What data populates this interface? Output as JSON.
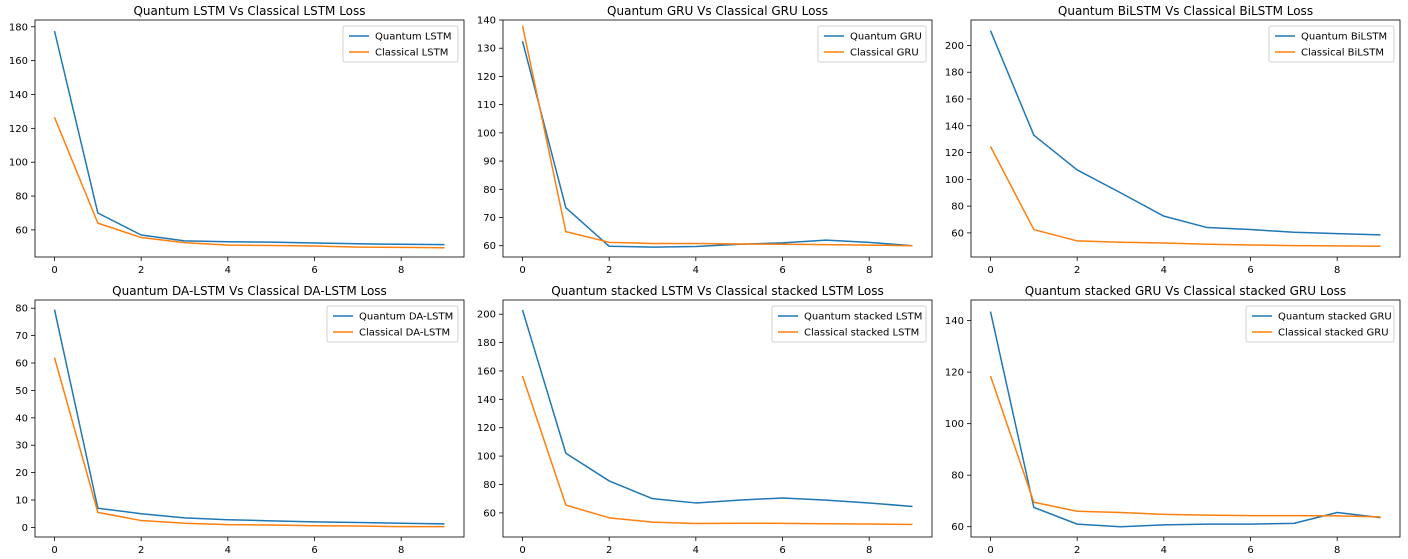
{
  "colors": {
    "series1": "#1f77b4",
    "series2": "#ff7f0e"
  },
  "chart_data": [
    {
      "type": "line",
      "title": "Quantum LSTM Vs Classical LSTM Loss",
      "x": [
        0,
        1,
        2,
        3,
        4,
        5,
        6,
        7,
        8,
        9
      ],
      "xlim": [
        -0.45,
        9.45
      ],
      "xticks": [
        0,
        2,
        4,
        6,
        8
      ],
      "ylim": [
        44,
        184
      ],
      "yticks": [
        60,
        80,
        100,
        120,
        140,
        160,
        180
      ],
      "legend": "top-right",
      "series": [
        {
          "name": "Quantum LSTM",
          "values": [
            177.5,
            70.0,
            57.0,
            53.5,
            53.0,
            52.8,
            52.3,
            51.8,
            51.5,
            51.3
          ]
        },
        {
          "name": "Classical LSTM",
          "values": [
            126.5,
            64.0,
            55.5,
            52.5,
            51.0,
            50.8,
            50.5,
            49.8,
            49.7,
            49.5
          ]
        }
      ]
    },
    {
      "type": "line",
      "title": "Quantum GRU Vs Classical GRU Loss",
      "x": [
        0,
        1,
        2,
        3,
        4,
        5,
        6,
        7,
        8,
        9
      ],
      "xlim": [
        -0.45,
        9.45
      ],
      "xticks": [
        0,
        2,
        4,
        6,
        8
      ],
      "ylim": [
        56,
        140
      ],
      "yticks": [
        60,
        70,
        80,
        90,
        100,
        110,
        120,
        130,
        140
      ],
      "legend": "top-right",
      "series": [
        {
          "name": "Quantum GRU",
          "values": [
            132.5,
            73.5,
            59.8,
            59.5,
            59.7,
            60.5,
            61.0,
            62.0,
            61.2,
            60.0
          ]
        },
        {
          "name": "Classical GRU",
          "values": [
            138.0,
            65.0,
            61.2,
            60.8,
            60.8,
            60.6,
            60.5,
            60.4,
            60.2,
            60.0
          ]
        }
      ]
    },
    {
      "type": "line",
      "title": "Quantum BiLSTM Vs Classical BiLSTM Loss",
      "x": [
        0,
        1,
        2,
        3,
        4,
        5,
        6,
        7,
        8,
        9
      ],
      "xlim": [
        -0.45,
        9.45
      ],
      "xticks": [
        0,
        2,
        4,
        6,
        8
      ],
      "ylim": [
        42,
        219
      ],
      "yticks": [
        60,
        80,
        100,
        120,
        140,
        160,
        180,
        200
      ],
      "legend": "top-right",
      "series": [
        {
          "name": "Quantum BiLSTM",
          "values": [
            211.0,
            133.0,
            107.0,
            90.0,
            72.5,
            64.0,
            62.5,
            60.5,
            59.5,
            58.5
          ]
        },
        {
          "name": "Classical BiLSTM",
          "values": [
            124.5,
            62.5,
            54.0,
            53.0,
            52.5,
            51.5,
            51.0,
            50.5,
            50.3,
            50.0
          ]
        }
      ]
    },
    {
      "type": "line",
      "title": "Quantum DA-LSTM Vs Classical DA-LSTM Loss",
      "x": [
        0,
        1,
        2,
        3,
        4,
        5,
        6,
        7,
        8,
        9
      ],
      "xlim": [
        -0.45,
        9.45
      ],
      "xticks": [
        0,
        2,
        4,
        6,
        8
      ],
      "ylim": [
        -3.5,
        83
      ],
      "yticks": [
        0,
        10,
        20,
        30,
        40,
        50,
        60,
        70,
        80
      ],
      "legend": "top-right",
      "series": [
        {
          "name": "Quantum DA-LSTM",
          "values": [
            79.5,
            7.0,
            5.0,
            3.5,
            2.8,
            2.4,
            2.0,
            1.8,
            1.5,
            1.3
          ]
        },
        {
          "name": "Classical DA-LSTM",
          "values": [
            62.0,
            5.5,
            2.5,
            1.5,
            1.0,
            0.9,
            0.6,
            0.5,
            0.3,
            0.3
          ]
        }
      ]
    },
    {
      "type": "line",
      "title": "Quantum stacked LSTM Vs Classical stacked LSTM Loss",
      "x": [
        0,
        1,
        2,
        3,
        4,
        5,
        6,
        7,
        8,
        9
      ],
      "xlim": [
        -0.45,
        9.45
      ],
      "xticks": [
        0,
        2,
        4,
        6,
        8
      ],
      "ylim": [
        43,
        210
      ],
      "yticks": [
        60,
        80,
        100,
        120,
        140,
        160,
        180,
        200
      ],
      "legend": "top-right",
      "series": [
        {
          "name": "Quantum stacked LSTM",
          "values": [
            203.0,
            102.0,
            82.5,
            70.0,
            67.0,
            69.0,
            70.5,
            69.0,
            67.0,
            64.5
          ]
        },
        {
          "name": "Classical stacked LSTM",
          "values": [
            156.5,
            65.5,
            56.5,
            53.5,
            52.5,
            52.7,
            52.6,
            52.3,
            52.2,
            51.8
          ]
        }
      ]
    },
    {
      "type": "line",
      "title": "Quantum stacked GRU Vs Classical stacked GRU Loss",
      "x": [
        0,
        1,
        2,
        3,
        4,
        5,
        6,
        7,
        8,
        9
      ],
      "xlim": [
        -0.45,
        9.45
      ],
      "xticks": [
        0,
        2,
        4,
        6,
        8
      ],
      "ylim": [
        56,
        148
      ],
      "yticks": [
        60,
        80,
        100,
        120,
        140
      ],
      "legend": "top-right",
      "series": [
        {
          "name": "Quantum stacked GRU",
          "values": [
            143.5,
            67.5,
            61.0,
            60.0,
            60.7,
            61.0,
            61.0,
            61.3,
            65.5,
            63.5
          ]
        },
        {
          "name": "Classical stacked GRU",
          "values": [
            118.5,
            69.5,
            66.0,
            65.5,
            64.8,
            64.5,
            64.3,
            64.3,
            64.2,
            63.8
          ]
        }
      ]
    }
  ]
}
